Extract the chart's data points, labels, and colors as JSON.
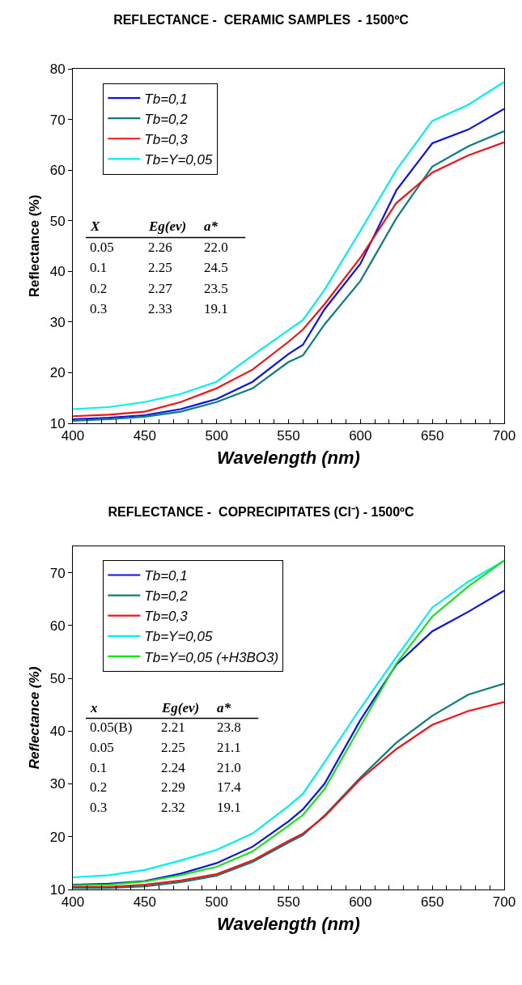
{
  "chart_data": [
    {
      "type": "line",
      "title": "REFLECTANCE -  CERAMIC SAMPLES  - 1500ºC",
      "xlabel": "Wavelength (nm)",
      "ylabel": "Reflectance (%)",
      "x": [
        400,
        425,
        450,
        475,
        500,
        525,
        550,
        560,
        575,
        600,
        625,
        650,
        675,
        700
      ],
      "series": [
        {
          "name": "Tb=0,1",
          "color": "#0a14e6",
          "values": [
            10.8,
            11.1,
            11.6,
            12.8,
            14.8,
            18.2,
            23.7,
            25.5,
            32.5,
            41.5,
            56,
            65.3,
            68,
            72.1
          ]
        },
        {
          "name": "Tb=0,2",
          "color": "#0a7d7d",
          "values": [
            10.5,
            10.8,
            11.3,
            12.3,
            14.2,
            16.9,
            22.1,
            23.4,
            29.5,
            38.1,
            50.5,
            60.7,
            64.7,
            67.7
          ]
        },
        {
          "name": "Tb=0,3",
          "color": "#f01414",
          "values": [
            11.4,
            11.7,
            12.3,
            14.2,
            16.9,
            20.6,
            26.1,
            28.5,
            33.5,
            42.7,
            53.5,
            59.5,
            62.9,
            65.5
          ]
        },
        {
          "name": "Tb=Y=0,05",
          "color": "#00f0f0",
          "values": [
            12.8,
            13.2,
            14.2,
            15.8,
            18.2,
            23.4,
            28.4,
            30.4,
            36.3,
            48,
            60,
            69.7,
            72.9,
            77.4
          ]
        }
      ],
      "xlim": [
        400,
        700
      ],
      "xticks": [
        400,
        {
          "value": 410,
          "label": null
        },
        {
          "value": 420,
          "label": null
        },
        {
          "value": 430,
          "label": null
        },
        {
          "value": 440,
          "label": null
        },
        450,
        {
          "value": 460,
          "label": null
        },
        {
          "value": 470,
          "label": null
        },
        {
          "value": 480,
          "label": null
        },
        {
          "value": 490,
          "label": null
        },
        500,
        {
          "value": 510,
          "label": null
        },
        {
          "value": 520,
          "label": null
        },
        {
          "value": 530,
          "label": null
        },
        {
          "value": 540,
          "label": null
        },
        550,
        {
          "value": 560,
          "label": null
        },
        {
          "value": 570,
          "label": null
        },
        {
          "value": 580,
          "label": null
        },
        {
          "value": 590,
          "label": null
        },
        600,
        {
          "value": 610,
          "label": null
        },
        {
          "value": 620,
          "label": null
        },
        {
          "value": 630,
          "label": null
        },
        {
          "value": 640,
          "label": null
        },
        650,
        {
          "value": 660,
          "label": null
        },
        {
          "value": 670,
          "label": null
        },
        {
          "value": 680,
          "label": null
        },
        {
          "value": 690,
          "label": null
        },
        700
      ],
      "ylim": [
        10,
        80
      ],
      "yticks": [
        10,
        20,
        30,
        40,
        50,
        60,
        70,
        80
      ],
      "grid": false,
      "legend": "top left",
      "line_style": "solid",
      "marker": "none",
      "annotations": [
        "X Eg(ev) a*",
        "0.05 2.26 22.0",
        "0.1 2.25 24.5",
        "0.2 2.27 23.5",
        "0.3 2.33 19.1"
      ]
    },
    {
      "type": "line",
      "title": "REFLECTANCE -  COPRECIPITATES (Cl⁻) - 1500ºC",
      "xlabel": "Wavelength (nm)",
      "ylabel": "Reflectance (%)",
      "x": [
        400,
        425,
        450,
        475,
        500,
        525,
        550,
        560,
        575,
        600,
        625,
        650,
        675,
        700
      ],
      "series": [
        {
          "name": "Tb=0,1",
          "color": "#0a14e6",
          "values": [
            10.9,
            11.1,
            11.6,
            13,
            15,
            18.1,
            22.9,
            25.2,
            30,
            42.1,
            52.6,
            58.9,
            62.6,
            66.6
          ]
        },
        {
          "name": "Tb=0,2",
          "color": "#0a7d7d",
          "values": [
            10.3,
            10.3,
            10.6,
            11.4,
            12.6,
            15.2,
            18.9,
            20.3,
            24,
            31.2,
            37.8,
            42.9,
            46.9,
            49
          ]
        },
        {
          "name": "Tb=0,3",
          "color": "#f01414",
          "values": [
            10.5,
            10.5,
            10.9,
            11.7,
            12.9,
            15.5,
            19.2,
            20.6,
            23.8,
            30.9,
            36.6,
            41.2,
            43.8,
            45.5
          ]
        },
        {
          "name": "Tb=Y=0,05",
          "color": "#00f0f0",
          "values": [
            12.3,
            12.7,
            13.7,
            15.5,
            17.5,
            20.6,
            25.8,
            28.1,
            34.1,
            44.3,
            54,
            63.4,
            68.3,
            72.3
          ]
        },
        {
          "name": "Tb=Y=0,05 (+H3BO3)",
          "color": "#14e614",
          "values": [
            10.8,
            10.9,
            11.5,
            12.7,
            14.3,
            17.2,
            22.1,
            24.1,
            29,
            40.9,
            52.8,
            61.7,
            67.4,
            72.3
          ]
        }
      ],
      "xlim": [
        400,
        700
      ],
      "xticks": [
        400,
        {
          "value": 410,
          "label": null
        },
        {
          "value": 420,
          "label": null
        },
        {
          "value": 430,
          "label": null
        },
        {
          "value": 440,
          "label": null
        },
        450,
        {
          "value": 460,
          "label": null
        },
        {
          "value": 470,
          "label": null
        },
        {
          "value": 480,
          "label": null
        },
        {
          "value": 490,
          "label": null
        },
        500,
        {
          "value": 510,
          "label": null
        },
        {
          "value": 520,
          "label": null
        },
        {
          "value": 530,
          "label": null
        },
        {
          "value": 540,
          "label": null
        },
        550,
        {
          "value": 560,
          "label": null
        },
        {
          "value": 570,
          "label": null
        },
        {
          "value": 580,
          "label": null
        },
        {
          "value": 590,
          "label": null
        },
        600,
        {
          "value": 610,
          "label": null
        },
        {
          "value": 620,
          "label": null
        },
        {
          "value": 630,
          "label": null
        },
        {
          "value": 640,
          "label": null
        },
        650,
        {
          "value": 660,
          "label": null
        },
        {
          "value": 670,
          "label": null
        },
        {
          "value": 680,
          "label": null
        },
        {
          "value": 690,
          "label": null
        },
        700
      ],
      "ylim": [
        10,
        75
      ],
      "yticks": [
        10,
        20,
        30,
        40,
        50,
        60,
        70
      ],
      "grid": false,
      "legend": "top left",
      "line_style": "solid",
      "marker": "none",
      "annotations": [
        "x Eg(ev) a*",
        "0.05(B) 2.21 23.8",
        "0.05 2.25 21.1",
        "0.1 2.24 21.0",
        "0.2 2.29 17.4",
        "0.3 2.32 19.1"
      ]
    }
  ]
}
